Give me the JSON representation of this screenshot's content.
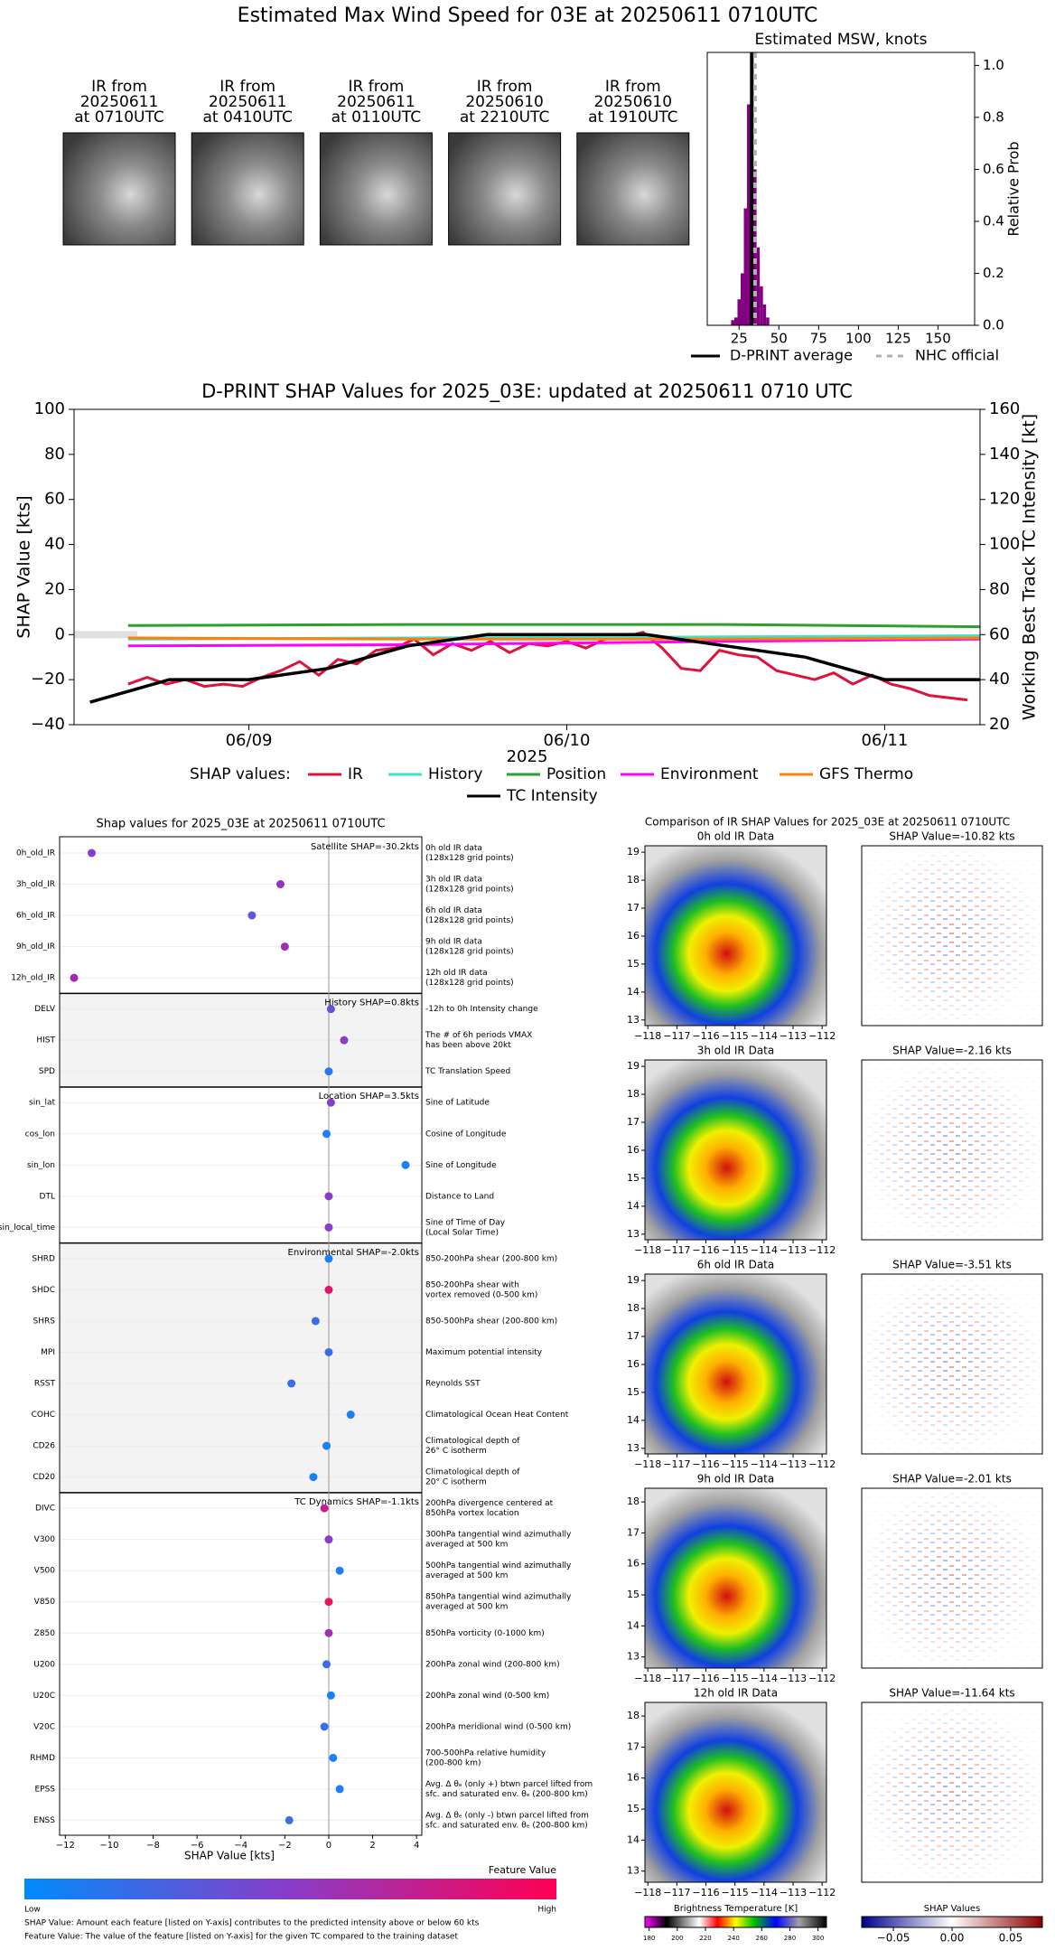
{
  "title": "Estimated Max Wind Speed for 03E at 20250611 0710UTC",
  "ir_thumbnails": [
    [
      "IR from",
      "20250611",
      "at 0710UTC"
    ],
    [
      "IR from",
      "20250611",
      "at 0410UTC"
    ],
    [
      "IR from",
      "20250611",
      "at 0110UTC"
    ],
    [
      "IR from",
      "20250610",
      "at 2210UTC"
    ],
    [
      "IR from",
      "20250610",
      "at 1910UTC"
    ]
  ],
  "chart_data": [
    {
      "type": "histogram",
      "title": "Estimated MSW, knots",
      "ylabel": "Relative Prob",
      "bins": [
        20,
        22,
        24,
        26,
        28,
        30,
        32,
        34,
        36,
        38,
        40,
        42,
        44
      ],
      "values": [
        0.02,
        0.03,
        0.1,
        0.2,
        0.45,
        0.85,
        1.0,
        0.6,
        0.3,
        0.15,
        0.08,
        0.03
      ],
      "color": "#800080",
      "xlim": [
        5,
        173
      ],
      "xticks": [
        25,
        50,
        75,
        100,
        125,
        150
      ],
      "ylim": [
        0,
        1.05
      ],
      "yticks": [
        {
          "value": 0,
          "label": "0.0"
        },
        {
          "value": 0.2,
          "label": "0.2"
        },
        {
          "value": 0.4,
          "label": "0.4"
        },
        {
          "value": 0.6,
          "label": "0.6"
        },
        {
          "value": 0.8,
          "label": "0.8"
        },
        {
          "value": 1.0,
          "label": "1.0"
        }
      ],
      "lines": [
        {
          "name": "D-PRINT average",
          "x": 33,
          "color": "#000000",
          "style": "solid"
        },
        {
          "name": "NHC official",
          "x": 35,
          "color": "#b0b0b0",
          "style": "dotted"
        }
      ]
    },
    {
      "type": "line",
      "title": "D-PRINT SHAP Values for 2025_03E: updated at 20250611 0710 UTC",
      "xlabel": "2025",
      "ylabel": "SHAP Value [kts]",
      "y2label": "Working Best Track TC Intensity [kt]",
      "legend_title": "SHAP values:",
      "xlim": [
        8.45,
        11.3
      ],
      "xticks": [
        {
          "value": 9,
          "label": "06/09"
        },
        {
          "value": 10,
          "label": "06/10"
        },
        {
          "value": 11,
          "label": "06/11"
        }
      ],
      "ylim": [
        -40,
        100
      ],
      "yticks": [
        {
          "value": -40,
          "label": "−40"
        },
        {
          "value": -20,
          "label": "−20"
        },
        0,
        20,
        40,
        60,
        80,
        100
      ],
      "y2lim": [
        20,
        160
      ],
      "y2ticks": [
        20,
        40,
        60,
        80,
        100,
        120,
        140,
        160
      ],
      "series": [
        {
          "name": "IR",
          "color": "#dc143c",
          "x": [
            8.62,
            8.68,
            8.74,
            8.8,
            8.86,
            8.92,
            8.98,
            9.04,
            9.1,
            9.16,
            9.22,
            9.28,
            9.34,
            9.4,
            9.46,
            9.52,
            9.58,
            9.64,
            9.7,
            9.76,
            9.82,
            9.88,
            9.94,
            10,
            10.06,
            10.12,
            10.18,
            10.24,
            10.3,
            10.36,
            10.42,
            10.48,
            10.54,
            10.6,
            10.66,
            10.72,
            10.78,
            10.84,
            10.9,
            10.96,
            11.02,
            11.08,
            11.14,
            11.2,
            11.26
          ],
          "values": [
            -22,
            -19,
            -22,
            -20,
            -23,
            -22,
            -23,
            -19,
            -16,
            -12,
            -18,
            -11,
            -13,
            -7,
            -6,
            -2,
            -9,
            -4,
            -7,
            -3,
            -8,
            -4,
            -5,
            -3,
            -6,
            -2,
            -1,
            1,
            -6,
            -15,
            -16,
            -7,
            -9,
            -10,
            -16,
            -18,
            -20,
            -17,
            -22,
            -18,
            -22,
            -24,
            -27,
            -28,
            -29
          ]
        },
        {
          "name": "History",
          "color": "#40e0d0",
          "x": [
            8.62,
            9.5,
            10.5,
            11.3
          ],
          "values": [
            -2,
            -1.5,
            -1,
            -0.5
          ]
        },
        {
          "name": "Position",
          "color": "#2ca02c",
          "x": [
            8.62,
            9.5,
            10.5,
            11.3
          ],
          "values": [
            4,
            4.5,
            4.5,
            3.5
          ]
        },
        {
          "name": "Environment",
          "color": "#ff00ff",
          "x": [
            8.62,
            9.5,
            10.5,
            11.3
          ],
          "values": [
            -5,
            -4.5,
            -3,
            -2
          ]
        },
        {
          "name": "GFS Thermo",
          "color": "#ff7f0e",
          "x": [
            8.62,
            9.5,
            10.5,
            11.3
          ],
          "values": [
            -1.5,
            -2,
            -2,
            -1.5
          ]
        },
        {
          "name": "TC Intensity",
          "color": "#000000",
          "axis": "y2",
          "x": [
            8.5,
            8.75,
            9.0,
            9.25,
            9.5,
            9.75,
            10.0,
            10.25,
            10.5,
            10.75,
            11.0,
            11.3
          ],
          "values": [
            30,
            40,
            40,
            45,
            55,
            60,
            60,
            60,
            55,
            50,
            40,
            40
          ]
        }
      ]
    },
    {
      "type": "dot",
      "title": "Shap values for 2025_03E at 20250611 0710UTC",
      "xlabel": "SHAP Value [kts]",
      "xlim": [
        -12.26,
        4.24
      ],
      "xticks": [
        {
          "value": -12,
          "label": "−12"
        },
        {
          "value": -10,
          "label": "−10"
        },
        {
          "value": -8,
          "label": "−8"
        },
        {
          "value": -6,
          "label": "−6"
        },
        {
          "value": -4,
          "label": "−4"
        },
        {
          "value": -2,
          "label": "−2"
        },
        0,
        2,
        4
      ],
      "groups": [
        {
          "label": "Satellite SHAP=-30.2kts",
          "categories": [
            "0h_old_IR",
            "3h_old_IR",
            "6h_old_IR",
            "9h_old_IR",
            "12h_old_IR"
          ],
          "values": [
            -10.8,
            -2.2,
            -3.5,
            -2.0,
            -11.6
          ],
          "colors": [
            "#8e3bc8",
            "#9333c0",
            "#5a58e0",
            "#9a30b8",
            "#a22aaa"
          ],
          "descriptions": [
            [
              "0h old IR data",
              "(128x128 grid points)"
            ],
            [
              "3h old IR data",
              "(128x128 grid points)"
            ],
            [
              "6h old IR data",
              "(128x128 grid points)"
            ],
            [
              "9h old IR data",
              "(128x128 grid points)"
            ],
            [
              "12h old IR data",
              "(128x128 grid points)"
            ]
          ]
        },
        {
          "label": "History SHAP=0.8kts",
          "categories": [
            "DELV",
            "HIST",
            "SPD"
          ],
          "values": [
            0.1,
            0.7,
            0.0
          ],
          "colors": [
            "#6a4fd8",
            "#8e3bc8",
            "#2a78f0"
          ],
          "descriptions": [
            [
              "-12h to 0h Intensity change"
            ],
            [
              "The # of 6h periods VMAX",
              "has been above 20kt"
            ],
            [
              "TC Translation Speed"
            ]
          ]
        },
        {
          "label": "Location SHAP=3.5kts",
          "categories": [
            "sin_lat",
            "cos_lon",
            "sin_lon",
            "DTL",
            "sin_local_time"
          ],
          "values": [
            0.1,
            -0.1,
            3.5,
            0.0,
            0.0
          ],
          "colors": [
            "#8e3bc8",
            "#1a80f5",
            "#1a80f5",
            "#8a3cc8",
            "#8a3cc8"
          ],
          "descriptions": [
            [
              "Sine of Latitude"
            ],
            [
              "Cosine of Longitude"
            ],
            [
              "Sine of Longitude"
            ],
            [
              "Distance to Land"
            ],
            [
              "Sine of Time of Day",
              "(Local Solar Time)"
            ]
          ]
        },
        {
          "label": "Environmental SHAP=-2.0kts",
          "categories": [
            "SHRD",
            "SHDC",
            "SHRS",
            "MPI",
            "RSST",
            "COHC",
            "CD26",
            "CD20"
          ],
          "values": [
            0.0,
            0.0,
            -0.6,
            0.0,
            -1.7,
            1.0,
            -0.1,
            -0.7
          ],
          "colors": [
            "#1a80f5",
            "#e0156a",
            "#3a6ee8",
            "#3a6ee8",
            "#3a6ee8",
            "#1a80f5",
            "#1a80f5",
            "#1a80f5"
          ],
          "descriptions": [
            [
              "850-200hPa shear (200-800 km)"
            ],
            [
              "850-200hPa shear with",
              "vortex removed (0-500 km)"
            ],
            [
              "850-500hPa shear (200-800 km)"
            ],
            [
              "Maximum potential intensity"
            ],
            [
              "Reynolds SST"
            ],
            [
              "Climatological Ocean Heat Content"
            ],
            [
              "Climatological depth of",
              "26° C isotherm"
            ],
            [
              "Climatological depth of",
              "20° C isotherm"
            ]
          ]
        },
        {
          "label": "TC Dynamics SHAP=-1.1kts",
          "categories": [
            "DIVC",
            "V300",
            "V500",
            "V850",
            "Z850",
            "U200",
            "U20C",
            "V20C",
            "RHMD",
            "EPSS",
            "ENSS"
          ],
          "values": [
            -0.2,
            0.0,
            0.5,
            0.0,
            0.0,
            -0.1,
            0.1,
            -0.2,
            0.2,
            0.5,
            -1.8
          ],
          "colors": [
            "#c02090",
            "#8a3cc8",
            "#1a80f5",
            "#f01060",
            "#a030b0",
            "#3a6ee8",
            "#1a80f5",
            "#3a6ee8",
            "#1a80f5",
            "#1a80f5",
            "#3a6ee8"
          ],
          "descriptions": [
            [
              "200hPa divergence centered at",
              "850hPa vortex location"
            ],
            [
              "300hPa tangential wind azimuthally",
              "averaged at 500 km"
            ],
            [
              "500hPa tangential wind azimuthally",
              "averaged at 500 km"
            ],
            [
              "850hPa tangential wind azimuthally",
              "averaged at 500 km"
            ],
            [
              "850hPa vorticity (0-1000 km)"
            ],
            [
              "200hPa zonal wind (200-800 km)"
            ],
            [
              "200hPa zonal wind (0-500 km)"
            ],
            [
              "200hPa meridional wind (0-500 km)"
            ],
            [
              "700-500hPa relative humidity",
              "(200-800 km)"
            ],
            [
              "Avg. Δ θₑ (only +) btwn parcel lifted from",
              "sfc. and saturated env. θₑ (200-800 km)"
            ],
            [
              "Avg. Δ θₑ (only -) btwn parcel lifted from",
              "sfc. and saturated env. θₑ (200-800 km)"
            ]
          ]
        }
      ],
      "colorbar": {
        "title": "Feature Value",
        "low": "Low",
        "high": "High"
      }
    },
    {
      "type": "image_grid",
      "title": "Comparison of IR SHAP Values for 2025_03E at 20250611 0710UTC",
      "xlim": [
        -118.1,
        -111.85
      ],
      "xticks": [
        {
          "value": -118,
          "label": "−118"
        },
        {
          "value": -117,
          "label": "−117"
        },
        {
          "value": -116,
          "label": "−116"
        },
        {
          "value": -115,
          "label": "−115"
        },
        {
          "value": -114,
          "label": "−114"
        },
        {
          "value": -113,
          "label": "−113"
        },
        {
          "value": -112,
          "label": "−112"
        }
      ],
      "panels": [
        {
          "ir_title": "0h old IR Data",
          "shap_title": "SHAP Value=-10.82 kts",
          "ylim": [
            12.8,
            19.23
          ],
          "yticks": [
            13,
            14,
            15,
            16,
            17,
            18,
            19
          ]
        },
        {
          "ir_title": "3h old IR Data",
          "shap_title": "SHAP Value=-2.16 kts",
          "ylim": [
            12.8,
            19.23
          ],
          "yticks": [
            13,
            14,
            15,
            16,
            17,
            18,
            19
          ]
        },
        {
          "ir_title": "6h old IR Data",
          "shap_title": "SHAP Value=-3.51 kts",
          "ylim": [
            12.8,
            19.23
          ],
          "yticks": [
            13,
            14,
            15,
            16,
            17,
            18,
            19
          ]
        },
        {
          "ir_title": "9h old IR Data",
          "shap_title": "SHAP Value=-2.01 kts",
          "ylim": [
            12.64,
            18.44
          ],
          "yticks": [
            13,
            14,
            15,
            16,
            17,
            18
          ]
        },
        {
          "ir_title": "12h old IR Data",
          "shap_title": "SHAP Value=-11.64 kts",
          "ylim": [
            12.64,
            18.44
          ],
          "yticks": [
            13,
            14,
            15,
            16,
            17,
            18
          ]
        }
      ],
      "colorbars": [
        {
          "title": "Brightness Temperature [K]",
          "xlim": [
            177,
            306
          ],
          "xticks": [
            180,
            200,
            220,
            240,
            260,
            280,
            300
          ]
        },
        {
          "title": "SHAP Values",
          "xlim": [
            -0.077,
            0.077
          ],
          "xticks": [
            {
              "value": -0.05,
              "label": "−0.05"
            },
            {
              "value": 0,
              "label": "0.00"
            },
            {
              "value": 0.05,
              "label": "0.05"
            }
          ]
        }
      ]
    }
  ],
  "footnotes": [
    "SHAP Value: Amount each feature [listed on Y-axis] contributes to the predicted intensity above or below 60 kts",
    "Feature Value: The value of the feature [listed on Y-axis] for the given TC compared to the training dataset"
  ]
}
